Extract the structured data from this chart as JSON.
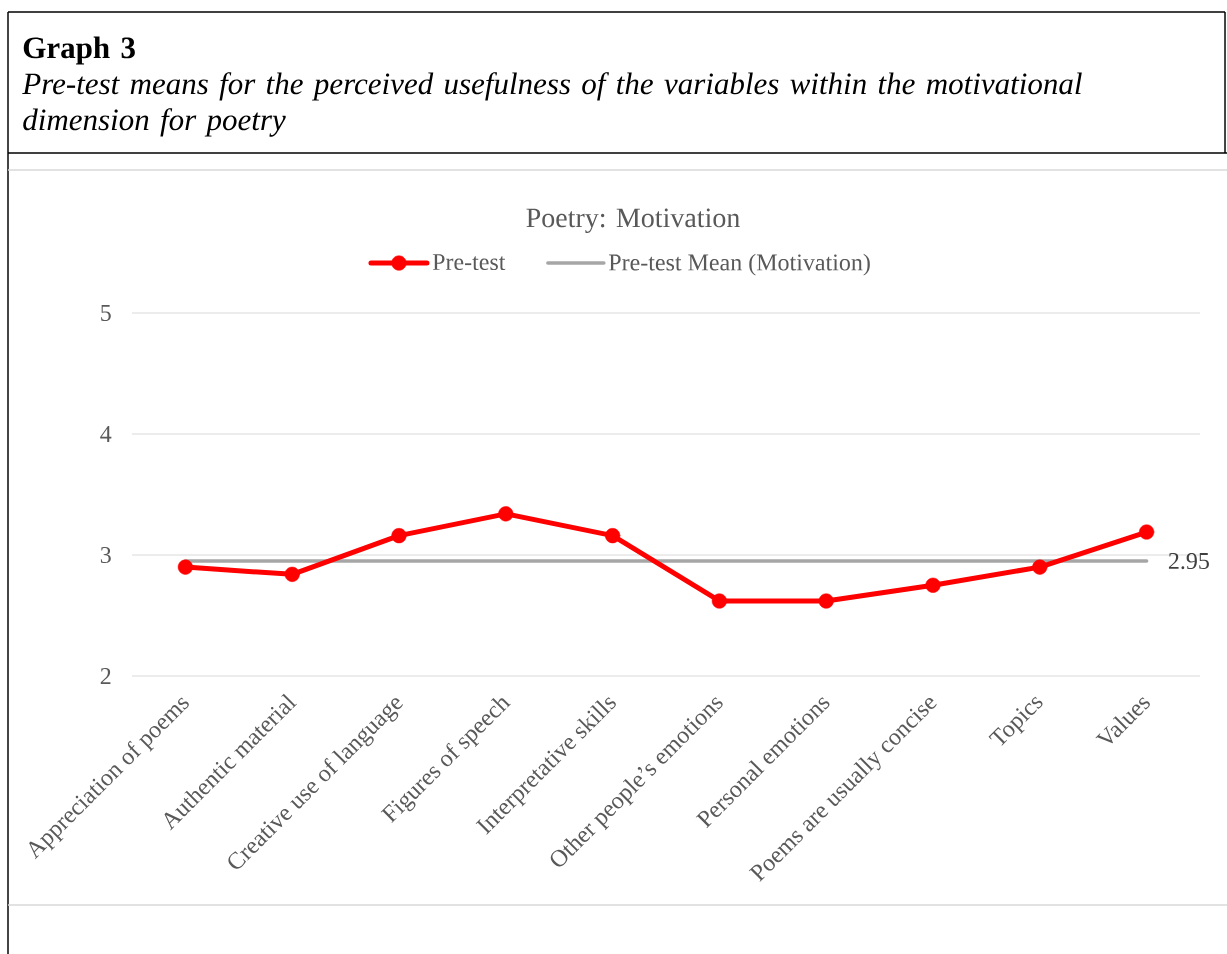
{
  "chart_data": {
    "type": "line",
    "title": "Poetry: Motivation",
    "annotations": [
      "Graph 3",
      "Pre-test means for the perceived usefulness of the variables within the motivational dimension for poetry"
    ],
    "categories": [
      "Appreciation of poems",
      "Authentic material",
      "Creative use of language",
      "Figures of speech",
      "Interpretative skills",
      "Other people’s emotions",
      "Personal emotions",
      "Poems are usually concise",
      "Topics",
      "Values"
    ],
    "series": [
      {
        "name": "Pre-test",
        "color": "#ff0000",
        "marker": "circle",
        "values": [
          2.9,
          2.84,
          3.16,
          3.34,
          3.16,
          2.62,
          2.62,
          2.75,
          2.9,
          3.19
        ]
      },
      {
        "name": "Pre-test Mean (Motivation)",
        "color": "#a6a6a6",
        "values": [
          2.95,
          2.95,
          2.95,
          2.95,
          2.95,
          2.95,
          2.95,
          2.95,
          2.95,
          2.95
        ],
        "value_labels": [
          null,
          null,
          null,
          null,
          null,
          null,
          null,
          null,
          null,
          "2.95"
        ]
      }
    ],
    "ylim": [
      2,
      5
    ],
    "yticks": [
      2,
      3,
      4,
      5
    ],
    "grid": "y",
    "legend": "top"
  }
}
